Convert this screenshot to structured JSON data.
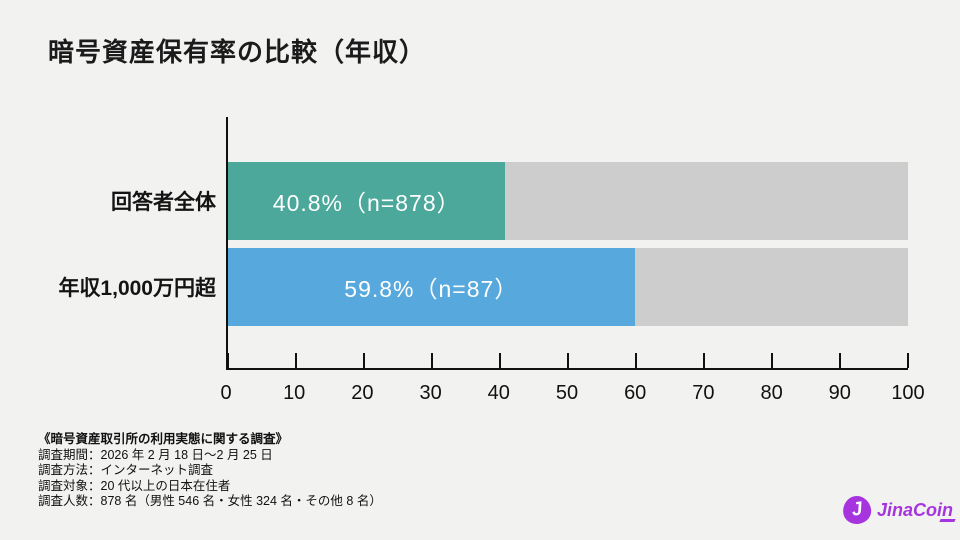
{
  "page": {
    "background": "#f2f2f1",
    "text_color": "#141414"
  },
  "title": "暗号資産保有率の比較（年収）",
  "chart_data": {
    "type": "bar",
    "orientation": "horizontal",
    "title": "暗号資産保有率の比較（年収）",
    "categories": [
      "回答者全体",
      "年収1,000万円超"
    ],
    "values": [
      40.8,
      59.8
    ],
    "bar_labels": [
      "40.8%（n=878）",
      "59.8%（n=87）"
    ],
    "bar_colors": [
      "#4ba89a",
      "#57a8dc"
    ],
    "track_color": "#cdcdcd",
    "xlabel": "",
    "ylabel": "",
    "xlim": [
      0,
      100
    ],
    "x_ticks": [
      0,
      10,
      20,
      30,
      40,
      50,
      60,
      70,
      80,
      90,
      100
    ],
    "grid": false,
    "legend": false,
    "n_values": [
      878,
      87
    ]
  },
  "footnote": {
    "title": "《暗号資産取引所の利用実態に関する調査》",
    "lines": [
      "調査期間：2026 年 2 月 18 日～2 月 25 日",
      "調査方法：インターネット調査",
      "調査対象：20 代以上の日本在住者",
      "調査人数：878 名（男性 546 名・女性 324 名・その他 8 名）"
    ]
  },
  "logo": {
    "mark": "J",
    "text": "JinaCoin",
    "color": "#a635df"
  }
}
